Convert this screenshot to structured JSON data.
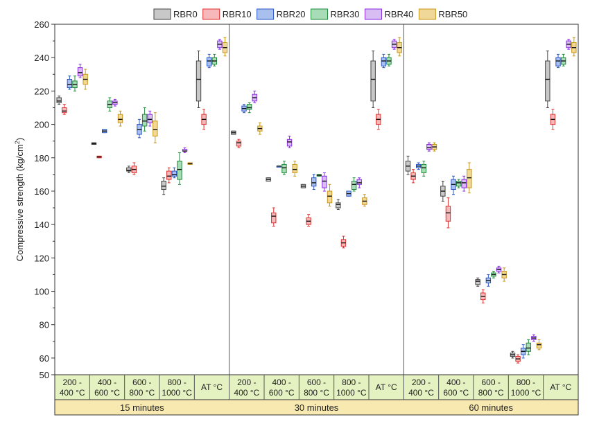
{
  "chart_data": {
    "type": "box",
    "ylabel_main": "Compressive strength (kg/cm",
    "ylabel_sup": "2",
    "ylabel_close": ")",
    "ylim": [
      50,
      260
    ],
    "yticks": [
      50,
      60,
      80,
      100,
      120,
      140,
      160,
      180,
      200,
      220,
      240,
      260
    ],
    "categories": [
      "200 - 400 °C",
      "400 - 600 °C",
      "600 - 800 °C",
      "800 - 1000 °C",
      "AT °C"
    ],
    "groups": [
      "15 minutes",
      "30 minutes",
      "60 minutes"
    ],
    "series": [
      {
        "name": "RBR0",
        "color": "#444444",
        "fill": "#c8c8c8"
      },
      {
        "name": "RBR10",
        "color": "#e03030",
        "fill": "#f6b8b8"
      },
      {
        "name": "RBR20",
        "color": "#2a56c6",
        "fill": "#a9c0ee"
      },
      {
        "name": "RBR30",
        "color": "#1e8a3a",
        "fill": "#a8dcb6"
      },
      {
        "name": "RBR40",
        "color": "#8a2be2",
        "fill": "#d7bdf2"
      },
      {
        "name": "RBR50",
        "color": "#c8961a",
        "fill": "#f0d898"
      }
    ],
    "boxes": [
      [
        [
          [
            212,
            213,
            214,
            216,
            217
          ],
          [
            206,
            207,
            208,
            210,
            212
          ],
          [
            221,
            222,
            224,
            227,
            229
          ],
          [
            220,
            222,
            224,
            226,
            229
          ],
          [
            228,
            229,
            231,
            234,
            236
          ],
          [
            221,
            224,
            227,
            230,
            233
          ]
        ],
        [
          [
            188,
            188,
            188.5,
            189,
            189
          ],
          [
            180,
            180,
            180.5,
            181,
            181
          ],
          [
            195,
            195,
            196,
            197,
            197
          ],
          [
            208,
            210,
            212,
            214,
            216
          ],
          [
            211,
            212,
            213,
            214,
            215
          ],
          [
            199,
            201,
            203,
            206,
            208
          ]
        ],
        [
          [
            171,
            172,
            172.5,
            174,
            175
          ],
          [
            170,
            171,
            173,
            175,
            177
          ],
          [
            192,
            194,
            197,
            200,
            203
          ],
          [
            196,
            199,
            202,
            206,
            210
          ],
          [
            199,
            201,
            203,
            206,
            208
          ],
          [
            189,
            193,
            197,
            202,
            207
          ]
        ],
        [
          [
            158,
            161,
            163,
            166,
            168
          ],
          [
            165,
            167,
            169,
            172,
            174
          ],
          [
            168,
            169,
            170,
            172,
            174
          ],
          [
            164,
            167,
            173,
            178,
            183
          ],
          [
            183,
            184,
            184,
            185,
            186
          ],
          [
            176,
            176,
            176.5,
            177,
            177
          ]
        ],
        [
          [
            210,
            214,
            227,
            238,
            244
          ],
          [
            197,
            200,
            203,
            206,
            209
          ],
          [
            234,
            235,
            238,
            240,
            242
          ],
          [
            235,
            236,
            238,
            240,
            242
          ],
          [
            245,
            246,
            248,
            250,
            251
          ],
          [
            241,
            243,
            246,
            249,
            252
          ]
        ]
      ],
      [
        [
          [
            194,
            194,
            195,
            196,
            196
          ],
          [
            186,
            187,
            189,
            190,
            191
          ],
          [
            207,
            208,
            209.5,
            211,
            212
          ],
          [
            207,
            209,
            210,
            212,
            213
          ],
          [
            213,
            214,
            216,
            218,
            220
          ],
          [
            194,
            196,
            197.5,
            199,
            201
          ]
        ],
        [
          [
            166,
            166,
            167,
            168,
            168
          ],
          [
            139,
            141,
            145,
            147,
            150
          ],
          [
            175,
            175,
            175,
            175,
            175
          ],
          [
            170,
            171,
            174,
            176,
            178
          ],
          [
            186,
            187,
            189.5,
            191,
            193
          ],
          [
            169,
            171,
            173,
            176,
            178
          ]
        ],
        [
          [
            162,
            162,
            163,
            164,
            164
          ],
          [
            139,
            140,
            142,
            144,
            146
          ],
          [
            161,
            163,
            165,
            168,
            170
          ],
          [
            169,
            169,
            169.5,
            170,
            170
          ],
          [
            160,
            162,
            166,
            169,
            171
          ],
          [
            151,
            153,
            157,
            160,
            164
          ]
        ],
        [
          [
            149,
            150,
            152,
            153,
            155
          ],
          [
            126,
            127,
            129,
            131,
            133
          ],
          [
            157,
            157,
            158.5,
            160,
            160
          ],
          [
            160,
            161,
            164,
            166,
            168
          ],
          [
            162,
            164,
            165,
            167,
            168
          ],
          [
            151,
            152,
            154,
            156,
            158
          ]
        ],
        [
          [
            210,
            214,
            227,
            238,
            244
          ],
          [
            197,
            200,
            203,
            206,
            209
          ],
          [
            234,
            235,
            238,
            240,
            242
          ],
          [
            235,
            236,
            238,
            240,
            242
          ],
          [
            245,
            246,
            248,
            250,
            251
          ],
          [
            241,
            243,
            246,
            249,
            252
          ]
        ]
      ],
      [
        [
          [
            170,
            172,
            175,
            178,
            181
          ],
          [
            165,
            167,
            169,
            171,
            173
          ],
          [
            173,
            174,
            175,
            176,
            177
          ],
          [
            169,
            171,
            174,
            176,
            178
          ],
          [
            184,
            185,
            186,
            188,
            189
          ],
          [
            184,
            185,
            186.5,
            188,
            189
          ]
        ],
        [
          [
            154,
            157,
            160,
            163,
            166
          ],
          [
            138,
            142,
            147,
            151,
            156
          ],
          [
            158,
            161,
            164,
            167,
            169
          ],
          [
            162,
            163,
            165,
            166,
            167
          ],
          [
            160,
            162,
            165,
            167,
            169
          ],
          [
            159,
            162,
            168,
            173,
            177
          ]
        ],
        [
          [
            103,
            104,
            106,
            107,
            108
          ],
          [
            93,
            95,
            97,
            99,
            101
          ],
          [
            103,
            105,
            106.5,
            108,
            110
          ],
          [
            108,
            109,
            110,
            111,
            112
          ],
          [
            111,
            112,
            113,
            114,
            115
          ],
          [
            106,
            108,
            110,
            112,
            114
          ]
        ],
        [
          [
            60,
            61,
            62,
            63,
            64
          ],
          [
            57,
            58,
            59.5,
            61,
            62
          ],
          [
            60,
            62,
            64,
            66,
            68
          ],
          [
            62,
            64,
            66,
            69,
            71
          ],
          [
            70,
            71,
            72,
            73,
            74
          ],
          [
            65,
            66,
            68,
            69,
            71
          ]
        ],
        [
          [
            210,
            214,
            227,
            238,
            244
          ],
          [
            197,
            200,
            203,
            206,
            209
          ],
          [
            234,
            235,
            238,
            240,
            242
          ],
          [
            235,
            236,
            238,
            240,
            242
          ],
          [
            245,
            246,
            248,
            250,
            251
          ],
          [
            241,
            243,
            246,
            249,
            252
          ]
        ]
      ]
    ]
  },
  "colors": {
    "category_fill": "#e4f1c0",
    "group_fill": "#f7e9b0",
    "axis": "#333333",
    "text": "#222222"
  }
}
